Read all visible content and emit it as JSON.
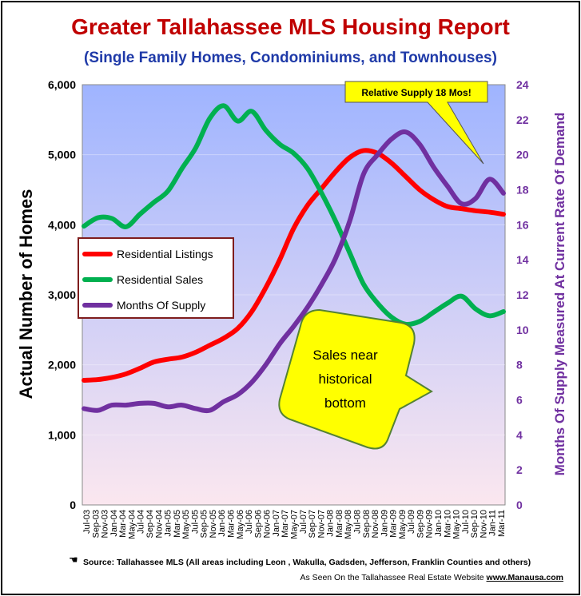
{
  "chart_data": {
    "type": "line",
    "title": "Greater Tallahassee MLS Housing Report",
    "subtitle": "(Single Family Homes, Condominiums, and Townhouses)",
    "ylabel": "Actual Number of Homes",
    "y2label": "Months Of Supply Measured  At Current Rate Of Demand",
    "ylim": [
      0,
      6000
    ],
    "y2lim": [
      0,
      24
    ],
    "yticks": [
      "0",
      "1,000",
      "2,000",
      "3,000",
      "4,000",
      "5,000",
      "6,000"
    ],
    "y2ticks": [
      "0",
      "2",
      "4",
      "6",
      "8",
      "10",
      "12",
      "14",
      "16",
      "18",
      "20",
      "22",
      "24"
    ],
    "xlabels": [
      "Jul-03",
      "Sep-03",
      "Nov-03",
      "Jan-04",
      "Mar-04",
      "May-04",
      "Jul-04",
      "Sep-04",
      "Nov-04",
      "Jan-05",
      "Mar-05",
      "May-05",
      "Jul-05",
      "Sep-05",
      "Nov-05",
      "Jan-06",
      "Mar-06",
      "May-06",
      "Jul-06",
      "Sep-06",
      "Nov-06",
      "Jan-07",
      "Mar-07",
      "May-07",
      "Jul-07",
      "Sep-07",
      "Nov-07",
      "Jan-08",
      "Mar-08",
      "May-08",
      "Jul-08",
      "Sep-08",
      "Nov-08",
      "Jan-09",
      "Mar-09",
      "May-09",
      "Jul-09",
      "Sep-09",
      "Nov-09",
      "Jan-10",
      "Mar-10",
      "May-10",
      "Jul-10",
      "Sep-10",
      "Nov-10",
      "Jan-11",
      "Mar-11"
    ],
    "series": [
      {
        "name": "Residential Listings",
        "axis": "left",
        "color": "#ff0000",
        "values": [
          1780,
          1790,
          1820,
          1870,
          1950,
          2040,
          2080,
          2110,
          2180,
          2280,
          2380,
          2520,
          2760,
          3100,
          3500,
          3950,
          4280,
          4520,
          4760,
          4960,
          5060,
          5020,
          4880,
          4690,
          4500,
          4360,
          4260,
          4230,
          4200,
          4180,
          4150
        ]
      },
      {
        "name": "Residential Sales",
        "axis": "left",
        "color": "#00b050",
        "values": [
          3980,
          4100,
          4090,
          3970,
          4150,
          4320,
          4480,
          4800,
          5100,
          5520,
          5700,
          5480,
          5620,
          5350,
          5150,
          5020,
          4800,
          4450,
          4050,
          3600,
          3150,
          2880,
          2680,
          2580,
          2620,
          2750,
          2880,
          2980,
          2800,
          2700,
          2760
        ]
      },
      {
        "name": "Months Of Supply",
        "axis": "right",
        "color": "#7030a0",
        "values": [
          5.5,
          5.4,
          5.7,
          5.7,
          5.8,
          5.8,
          5.6,
          5.7,
          5.5,
          5.4,
          5.9,
          6.3,
          7.0,
          8.0,
          9.2,
          10.2,
          11.3,
          12.6,
          14.1,
          16.2,
          18.9,
          20.0,
          20.9,
          21.3,
          20.6,
          19.3,
          18.2,
          17.2,
          17.5,
          18.6,
          17.8
        ]
      }
    ],
    "legend": [
      "Residential Listings",
      "Residential Sales",
      "Months Of Supply"
    ],
    "legend_position": "left",
    "annotations": {
      "supply_callout": "Relative Supply 18 Mos!",
      "sales_callout": [
        "Sales near",
        "historical",
        "bottom"
      ]
    },
    "grid": true
  },
  "footer": {
    "source": "Source: Tallahassee MLS (All areas including Leon , Wakulla, Gadsden, Jefferson, Franklin Counties and others)",
    "seen_prefix": "As Seen On the Tallahassee Real Estate Website",
    "seen_site": "www.Manausa.com"
  },
  "colors": {
    "title": "#c00000",
    "subtitle": "#1f3aa8",
    "plot_top": "#9fb4ff",
    "plot_bottom": "#fbe7ef",
    "y2axis_text": "#7030a0"
  }
}
